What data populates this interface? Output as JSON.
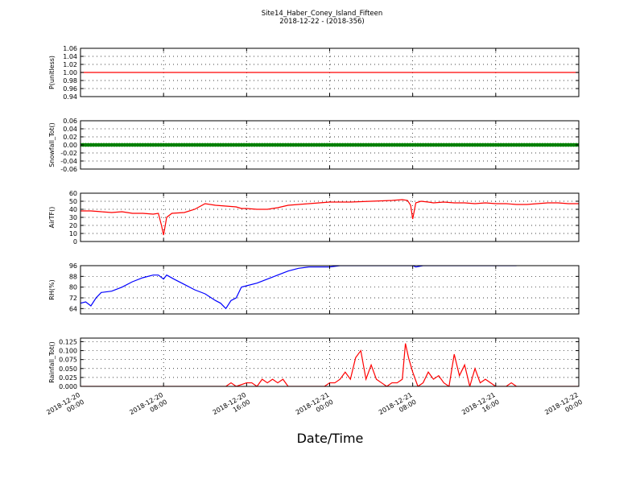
{
  "title": "Site14_Haber_Coney_Island_Fifteen",
  "subtitle": "2018-12-22 - (2018-356)",
  "xlabel": "Date/Time",
  "x_ticks": [
    {
      "line1": "2018-12-20",
      "line2": "00:00",
      "hour": 0
    },
    {
      "line1": "2018-12-20",
      "line2": "08:00",
      "hour": 8
    },
    {
      "line1": "2018-12-20",
      "line2": "16:00",
      "hour": 16
    },
    {
      "line1": "2018-12-21",
      "line2": "00:00",
      "hour": 24
    },
    {
      "line1": "2018-12-21",
      "line2": "08:00",
      "hour": 32
    },
    {
      "line1": "2018-12-21",
      "line2": "16:00",
      "hour": 40
    },
    {
      "line1": "2018-12-22",
      "line2": "00:00",
      "hour": 48
    }
  ],
  "chart_data": [
    {
      "type": "line",
      "ylabel": "P(unitless)",
      "ylim": [
        0.94,
        1.06
      ],
      "yticks": [
        "1.06",
        "1.04",
        "1.02",
        "1.00",
        "0.98",
        "0.96",
        "0.94"
      ],
      "ytick_values": [
        1.06,
        1.04,
        1.02,
        1.0,
        0.98,
        0.96,
        0.94
      ],
      "grid": true,
      "series": [
        {
          "color": "#ff0000",
          "x": [
            0,
            48
          ],
          "y": [
            1.0,
            1.0
          ]
        }
      ]
    },
    {
      "type": "scatter",
      "ylabel": "Snowfall_Tot()",
      "ylim": [
        -0.06,
        0.06
      ],
      "yticks": [
        "0.06",
        "0.04",
        "0.02",
        "0.00",
        "-0.02",
        "-0.04",
        "-0.06"
      ],
      "ytick_values": [
        0.06,
        0.04,
        0.02,
        0.0,
        -0.02,
        -0.04,
        -0.06
      ],
      "grid": true,
      "series": [
        {
          "color": "#008000",
          "x_start": 0,
          "x_end": 48,
          "x_step": 0.25,
          "y": 0.0
        }
      ]
    },
    {
      "type": "line",
      "ylabel": "AirTF()",
      "ylim": [
        0,
        60
      ],
      "yticks": [
        "60",
        "50",
        "40",
        "30",
        "20",
        "10",
        "0"
      ],
      "ytick_values": [
        60,
        50,
        40,
        30,
        20,
        10,
        0
      ],
      "grid": true,
      "series": [
        {
          "color": "#ff0000",
          "x": [
            0,
            1,
            2,
            3,
            4,
            5,
            6,
            7,
            7.5,
            7.8,
            8.0,
            8.3,
            8.8,
            10,
            11,
            12,
            13,
            14,
            15,
            15.5,
            16,
            17,
            18,
            19,
            20,
            22,
            24,
            26,
            28,
            30,
            31,
            31.5,
            31.8,
            32.0,
            32.3,
            32.8,
            33.5,
            34,
            35,
            36,
            37,
            38,
            39,
            40,
            41,
            42,
            43,
            44,
            45,
            46,
            47,
            48
          ],
          "y": [
            38,
            38,
            37,
            36,
            37,
            35,
            35,
            34,
            35,
            20,
            8,
            30,
            35,
            36,
            40,
            47,
            45,
            44,
            43,
            41,
            41,
            40,
            40,
            42,
            45,
            47,
            49,
            49,
            50,
            51,
            52,
            51,
            45,
            28,
            48,
            50,
            49,
            48,
            49,
            48,
            48,
            47,
            48,
            47,
            47,
            46,
            46,
            47,
            48,
            48,
            47,
            47
          ]
        }
      ]
    },
    {
      "type": "line",
      "ylabel": "RH(%)",
      "ylim": [
        60,
        96
      ],
      "yticks": [
        "96",
        "88",
        "80",
        "72",
        "64"
      ],
      "ytick_values": [
        96,
        88,
        80,
        72,
        64
      ],
      "grid": true,
      "series": [
        {
          "color": "#0000ff",
          "x": [
            0,
            0.5,
            1,
            1.5,
            2,
            3,
            4,
            5,
            6,
            7,
            7.5,
            8.0,
            8.3,
            9,
            10,
            11,
            12,
            13,
            13.5,
            14,
            14.5,
            15,
            15.5,
            16,
            17,
            18,
            19,
            20,
            21,
            22,
            23,
            24,
            25,
            26,
            27,
            28,
            29,
            30,
            31,
            32,
            32.3,
            33,
            34,
            35,
            36,
            37,
            38,
            39,
            40,
            41,
            42
          ],
          "y": [
            68,
            69,
            66,
            72,
            76,
            77,
            80,
            84,
            87,
            89,
            89,
            86,
            89,
            86,
            82,
            78,
            75,
            70,
            68,
            64,
            70,
            72,
            80,
            81,
            83,
            86,
            89,
            92,
            94,
            95,
            95,
            95,
            96,
            96,
            96,
            96,
            96,
            96,
            96,
            96,
            95,
            96,
            96,
            96,
            96,
            96,
            96,
            96,
            96,
            96,
            96
          ]
        }
      ]
    },
    {
      "type": "line",
      "ylabel": "Rainfall_Tot()",
      "ylim": [
        0,
        0.135
      ],
      "yticks": [
        "0.125",
        "0.100",
        "0.075",
        "0.050",
        "0.025",
        "0.000"
      ],
      "ytick_values": [
        0.125,
        0.1,
        0.075,
        0.05,
        0.025,
        0.0
      ],
      "grid": true,
      "series": [
        {
          "color": "#ff0000",
          "x": [
            0,
            14,
            14.5,
            15,
            16,
            16.5,
            17,
            17.5,
            18,
            18.5,
            19,
            19.5,
            20,
            23.5,
            24,
            24.5,
            25,
            25.5,
            26,
            26.5,
            27,
            27.5,
            28,
            28.5,
            29,
            29.5,
            30,
            30.5,
            31,
            31.3,
            31.6,
            32,
            32.5,
            33,
            33.5,
            34,
            34.5,
            35,
            35.5,
            36,
            36.5,
            37,
            37.5,
            38,
            38.5,
            39,
            40,
            41,
            41.5,
            42,
            48
          ],
          "y": [
            0,
            0,
            0.01,
            0,
            0.01,
            0.01,
            0,
            0.02,
            0.01,
            0.02,
            0.01,
            0.02,
            0,
            0,
            0.01,
            0.01,
            0.02,
            0.04,
            0.02,
            0.08,
            0.1,
            0.02,
            0.06,
            0.02,
            0.01,
            0,
            0.01,
            0.01,
            0.02,
            0.12,
            0.08,
            0.04,
            0,
            0.01,
            0.04,
            0.02,
            0.03,
            0.01,
            0,
            0.09,
            0.03,
            0.06,
            0,
            0.05,
            0.01,
            0.02,
            0,
            0,
            0.01,
            0,
            0
          ]
        }
      ]
    }
  ]
}
